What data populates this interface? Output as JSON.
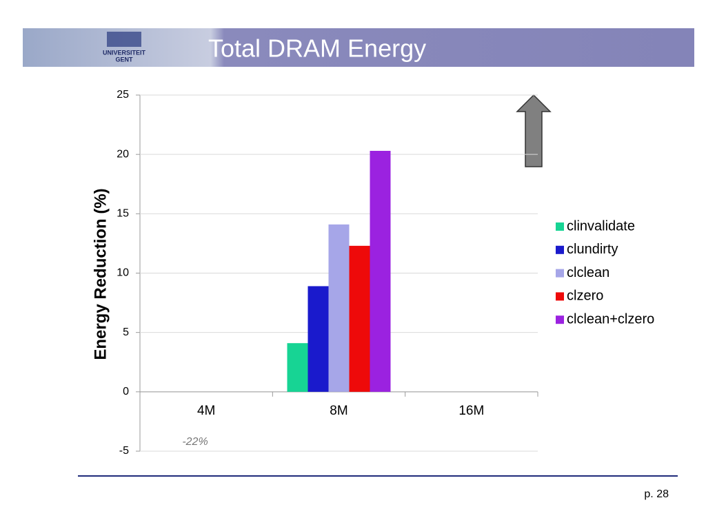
{
  "header": {
    "title": "Total DRAM Energy",
    "logo": [
      "UNIVERSITEIT",
      "GENT"
    ]
  },
  "chart_data": {
    "type": "bar",
    "categories": [
      "4M",
      "8M",
      "16M"
    ],
    "series": [
      {
        "name": "clinvalidate",
        "color": "#17d494",
        "values": [
          null,
          4.1,
          null
        ]
      },
      {
        "name": "clundirty",
        "color": "#1a1acc",
        "values": [
          null,
          8.9,
          null
        ]
      },
      {
        "name": "clclean",
        "color": "#a6a6e8",
        "values": [
          null,
          14.1,
          null
        ]
      },
      {
        "name": "clzero",
        "color": "#ee0a0a",
        "values": [
          null,
          12.3,
          null
        ]
      },
      {
        "name": "clclean+clzero",
        "color": "#9b22e0",
        "values": [
          null,
          20.3,
          null
        ]
      }
    ],
    "y_label": "Energy Reduction (%)",
    "ylim": [
      -5,
      25
    ],
    "yticks": [
      -5,
      0,
      5,
      10,
      15,
      20,
      25
    ],
    "grid": true,
    "legend": "right",
    "annotations": [
      "-22%"
    ]
  },
  "footer": {
    "page": "p. 28"
  }
}
